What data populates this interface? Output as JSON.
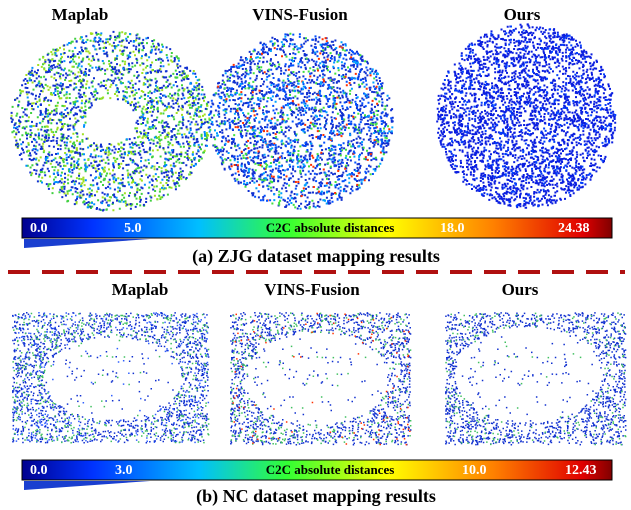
{
  "top": {
    "titles": [
      "Maplab",
      "VINS-Fusion",
      "Ours"
    ],
    "colorbar": {
      "ticks": [
        "0.0",
        "5.0",
        "18.0",
        "24.38"
      ],
      "label": "C2C absolute distances"
    },
    "caption": "(a) ZJG dataset mapping results"
  },
  "bottom": {
    "titles": [
      "Maplab",
      "VINS-Fusion",
      "Ours"
    ],
    "colorbar": {
      "ticks": [
        "0.0",
        "3.0",
        "10.0",
        "12.43"
      ],
      "label": "C2C absolute distances"
    },
    "caption": "(b) NC dataset mapping results"
  }
}
